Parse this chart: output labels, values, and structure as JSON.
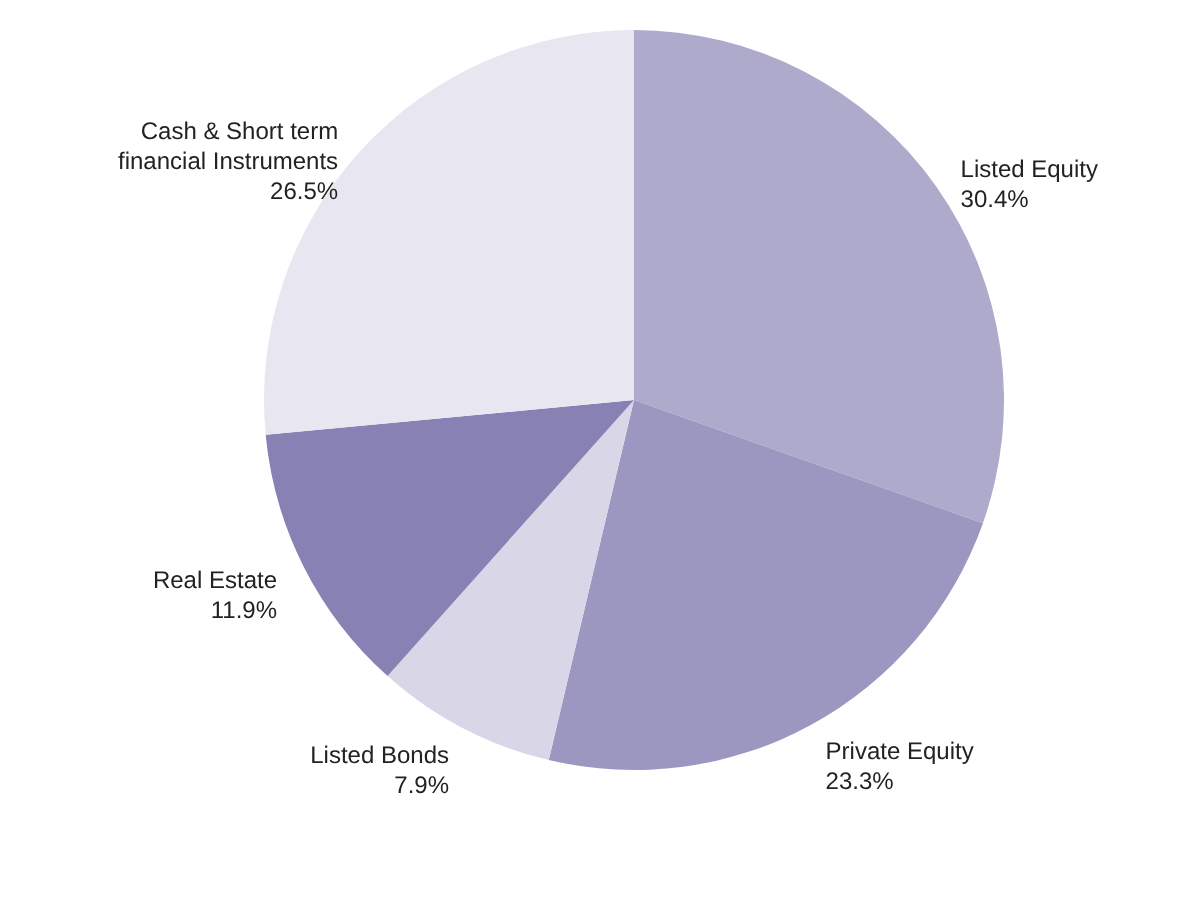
{
  "chart_data": {
    "type": "pie",
    "categories": [
      "Listed Equity",
      "Private Equity",
      "Listed Bonds",
      "Real Estate",
      "Cash & Short term financial Instruments"
    ],
    "values": [
      30.4,
      23.3,
      7.9,
      11.9,
      26.5
    ],
    "colors": [
      "#aeaacb",
      "#9c97c0",
      "#d9d6e8",
      "#8782b3",
      "#e8e6f1"
    ],
    "value_labels": [
      "30.4%",
      "23.3%",
      "7.9%",
      "11.9%",
      "26.5%"
    ]
  }
}
